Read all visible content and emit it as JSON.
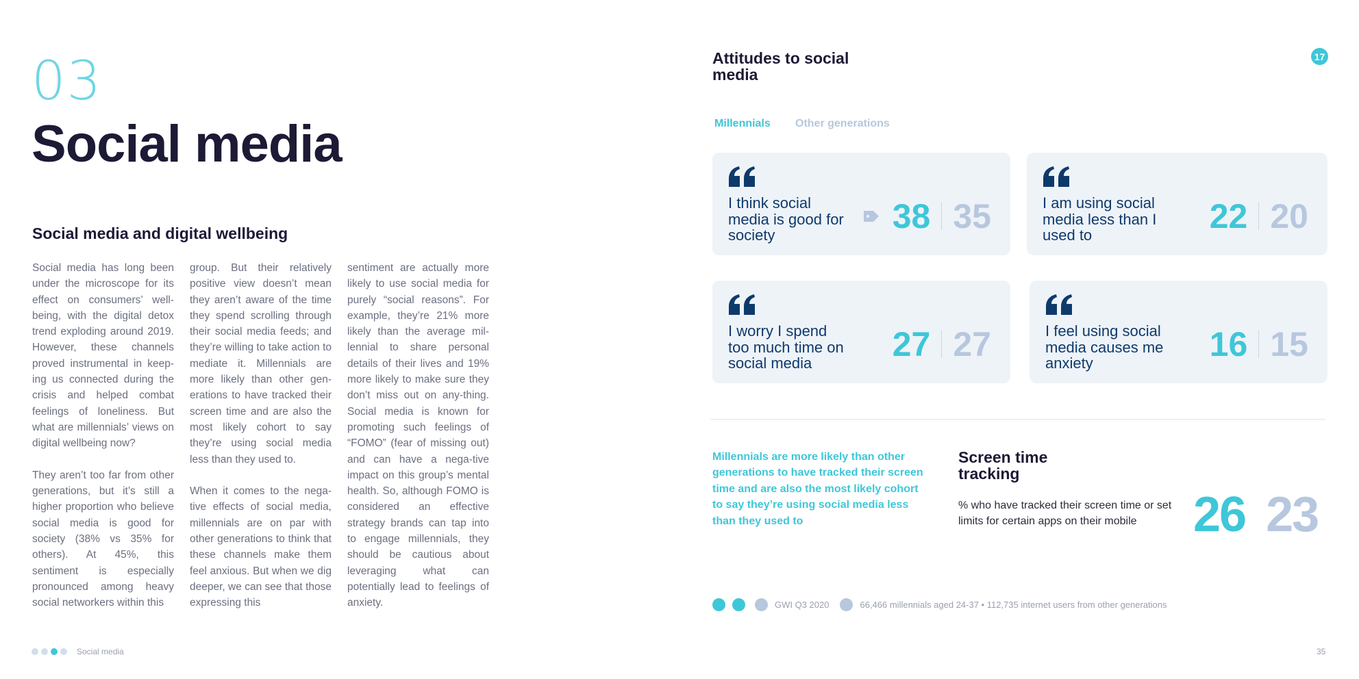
{
  "left_page": {
    "chapter_number": "03",
    "title": "Social media",
    "section_heading": "Social media and digital wellbeing",
    "columns": [
      [
        "Social media has long been under the microscope for its effect on consumers’ well-being, with the digital detox trend exploding around 2019. However, these channels proved instrumental in keep-ing us connected during the crisis and helped combat feelings of loneliness. But what are millennials’ views on digital wellbeing now?",
        "They aren’t too far from other generations, but it’s still a higher proportion who believe social media is good for society (38% vs 35% for others). At 45%, this sentiment is especially pronounced among heavy social networkers within this"
      ],
      [
        "group. But their relatively positive view doesn’t mean they aren’t aware of the time they spend scrolling through their social media feeds; and they’re willing to take action to mediate it. Millennials are more likely than other gen-erations to have tracked their screen time and are also the most likely cohort to say they’re using social media less than they used to.",
        "When it comes to the nega-tive effects of social media, millennials are on par with other generations to think that these channels make them feel anxious. But when we dig deeper, we can see that those expressing this"
      ],
      [
        "sentiment are actually more likely to use social media for purely “social reasons”. For example, they’re 21% more likely than the average mil-lennial to share personal details of their lives and 19% more likely to make sure they don’t miss out on any-thing. Social media is known for promoting such feelings of “FOMO” (fear of missing out) and can have a nega-tive impact on this group’s mental health. So, although FOMO is considered an effective strategy brands can tap into to engage millennials, they should be cautious about leveraging what can potentially lead to feelings of anxiety."
      ]
    ],
    "footer": {
      "section": "Social media",
      "active_dot": 3
    }
  },
  "right_page": {
    "title": "Attitudes to social media",
    "badge": "17",
    "tabs": [
      {
        "label": "Millennials",
        "color": "#3ec7d8"
      },
      {
        "label": "Other generations",
        "color": "#b7c7de"
      }
    ],
    "cards": [
      {
        "statement": "I think social media is good for society",
        "millennials": "38",
        "other": "35",
        "icon": "tag-arrow-icon"
      },
      {
        "statement": "I am using social media less than I used to",
        "millennials": "22",
        "other": "20"
      },
      {
        "statement": "I worry I spend too much time on social media",
        "millennials": "27",
        "other": "27"
      },
      {
        "statement": "I feel using social media causes me anxiety",
        "millennials": "16",
        "other": "15"
      }
    ],
    "insight": "Millennials are more likely than other generations to have tracked their screen time and are also the most likely cohort to say they’re using social media less than they used to",
    "screen_time": {
      "title": "Screen time tracking",
      "description": "% who have tracked their screen time or set limits for certain apps on their mobile",
      "millennials": "26",
      "other": "23"
    },
    "source": {
      "label": "GWI Q3 2020",
      "base": "66,466 millennials aged 24-37 • 112,735 internet users from other generations"
    },
    "page_number": "35"
  },
  "colors": {
    "accent": "#3ec7d8",
    "secondary": "#b7c7de",
    "navy": "#0e3a6b",
    "card_bg": "#eef3f8",
    "heading": "#1c1a35"
  }
}
